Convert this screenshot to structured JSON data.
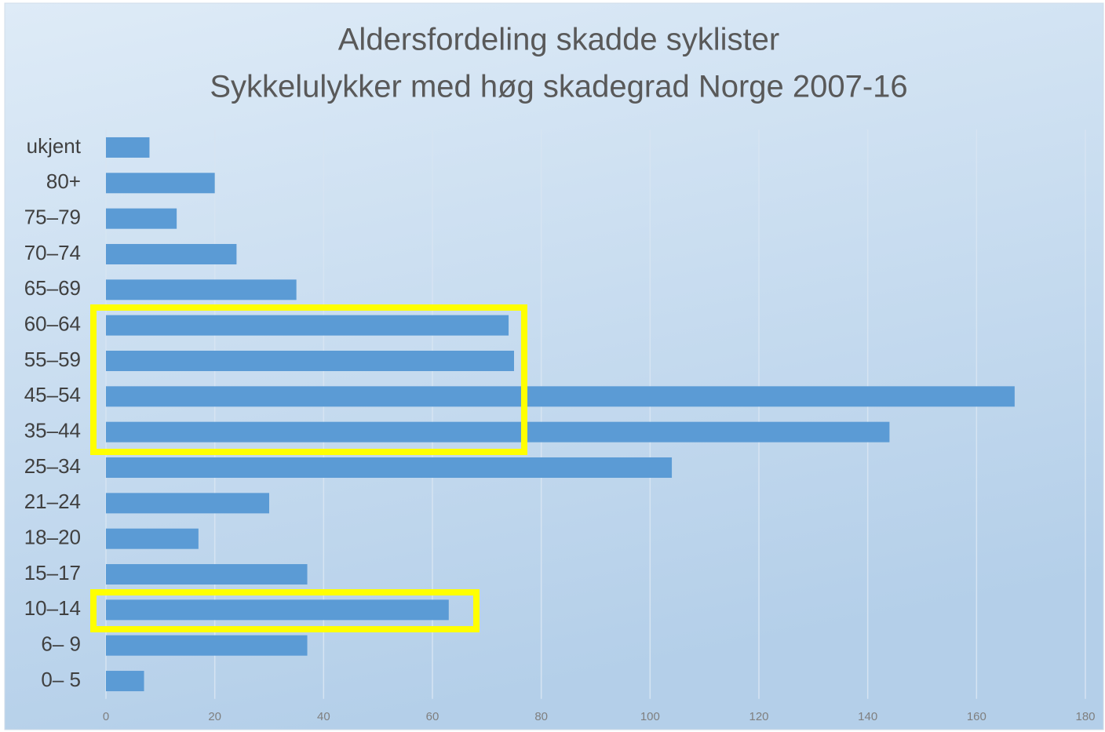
{
  "chart_data": {
    "type": "bar",
    "orientation": "horizontal",
    "title": "Aldersfordeling skadde syklister",
    "subtitle": "Sykkelulykker med høg skadegrad Norge 2007-16",
    "categories": [
      "ukjent",
      "80+",
      "75–79",
      "70–74",
      "65–69",
      "60–64",
      "55–59",
      "45–54",
      "35–44",
      "25–34",
      "21–24",
      "18–20",
      "15–17",
      "10–14",
      "6– 9",
      "0– 5"
    ],
    "values": [
      8,
      20,
      13,
      24,
      35,
      74,
      75,
      167,
      144,
      104,
      30,
      17,
      37,
      63,
      37,
      7
    ],
    "color": "#5b9bd5",
    "xlim": [
      0,
      180
    ],
    "xticks": [
      0,
      20,
      40,
      60,
      80,
      100,
      120,
      140,
      160,
      180
    ],
    "grid": true
  }
}
